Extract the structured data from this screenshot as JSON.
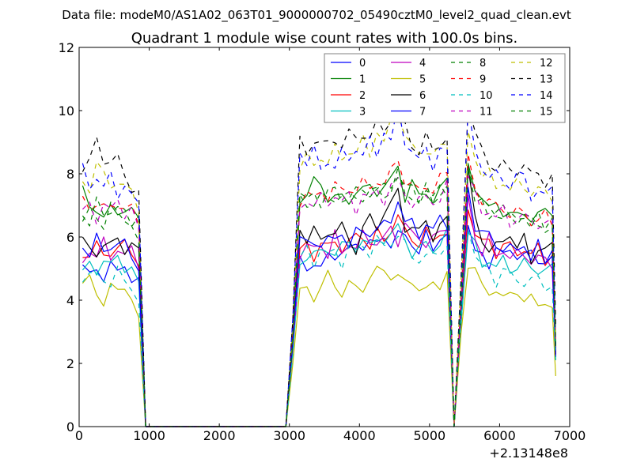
{
  "chart_data": {
    "type": "line",
    "suptitle": "Data file: modeM0/AS1A02_063T01_9000000702_05490cztM0_level2_quad_clean.evt",
    "title": "Quadrant 1 module wise count rates with 100.0s bins.",
    "xlabel": "",
    "ylabel": "",
    "x_offset_label": "+2.13148e8",
    "xlim": [
      0,
      7000
    ],
    "ylim": [
      0,
      12
    ],
    "xticks": [
      0,
      1000,
      2000,
      3000,
      4000,
      5000,
      6000,
      7000
    ],
    "yticks": [
      0,
      2,
      4,
      6,
      8,
      10,
      12
    ],
    "xtick_labels": [
      "0",
      "1000",
      "2000",
      "3000",
      "4000",
      "5000",
      "6000",
      "7000"
    ],
    "ytick_labels": [
      "0",
      "2",
      "4",
      "6",
      "8",
      "10",
      "12"
    ],
    "legend_position": "top-right",
    "legend_columns": 4,
    "gaps": [
      [
        950,
        3000
      ],
      [
        5300,
        5450
      ]
    ],
    "x": [
      50,
      150,
      250,
      350,
      450,
      550,
      650,
      750,
      850,
      950,
      1050,
      1500,
      2000,
      2500,
      2950,
      3050,
      3150,
      3250,
      3350,
      3450,
      3550,
      3650,
      3750,
      3850,
      3950,
      4050,
      4150,
      4250,
      4350,
      4450,
      4550,
      4650,
      4750,
      4850,
      4950,
      5050,
      5150,
      5250,
      5350,
      5450,
      5550,
      5650,
      5750,
      5850,
      5950,
      6050,
      6150,
      6250,
      6350,
      6450,
      6550,
      6650,
      6750,
      6800
    ],
    "series": [
      {
        "name": "0",
        "color": "#0000ff",
        "dash": "solid",
        "base": [
          5.0,
          4.8,
          4.9,
          4.9,
          5.0,
          4.9,
          5.1,
          4.8,
          4.4,
          0.0,
          0.0,
          0.0,
          0.0,
          0.0,
          0.0,
          2.5,
          5.1,
          5.2,
          5.1,
          5.0,
          5.3,
          5.6,
          5.4,
          5.6,
          5.7,
          5.9,
          5.7,
          5.8,
          6.0,
          5.9,
          5.9,
          6.1,
          5.8,
          5.6,
          5.9,
          5.7,
          6.0,
          6.1,
          0.0,
          3.5,
          6.4,
          5.5,
          5.3,
          5.3,
          5.6,
          5.4,
          5.5,
          5.6,
          5.3,
          5.5,
          5.2,
          5.4,
          5.3,
          2.2
        ]
      },
      {
        "name": "1",
        "color": "#008000",
        "dash": "solid",
        "base": [
          7.4,
          7.2,
          6.8,
          6.5,
          6.9,
          7.0,
          6.7,
          6.8,
          6.6,
          0.0,
          0.0,
          0.0,
          0.0,
          0.0,
          0.0,
          3.0,
          7.2,
          7.4,
          7.6,
          7.8,
          7.2,
          7.3,
          7.1,
          7.3,
          7.4,
          7.5,
          7.5,
          7.6,
          7.5,
          7.8,
          8.2,
          7.4,
          7.6,
          7.3,
          7.4,
          7.3,
          7.3,
          7.9,
          0.0,
          4.0,
          8.0,
          7.6,
          7.3,
          7.0,
          6.8,
          6.9,
          6.8,
          6.7,
          6.5,
          6.8,
          6.7,
          6.8,
          6.6,
          2.5
        ]
      },
      {
        "name": "2",
        "color": "#ff0000",
        "dash": "solid",
        "base": [
          5.6,
          5.3,
          5.7,
          5.5,
          5.6,
          5.5,
          5.8,
          5.6,
          5.2,
          0.0,
          0.0,
          0.0,
          0.0,
          0.0,
          0.0,
          2.6,
          5.5,
          5.7,
          5.4,
          5.9,
          5.6,
          5.8,
          5.7,
          5.9,
          5.9,
          6.0,
          5.8,
          6.2,
          5.7,
          6.3,
          6.8,
          6.1,
          5.8,
          5.9,
          6.3,
          5.7,
          6.1,
          6.3,
          0.0,
          3.5,
          7.0,
          6.2,
          5.7,
          5.9,
          5.5,
          5.8,
          5.6,
          5.5,
          5.7,
          5.4,
          5.6,
          5.3,
          5.5,
          2.3
        ]
      },
      {
        "name": "3",
        "color": "#00bfbf",
        "dash": "solid",
        "base": [
          4.9,
          5.0,
          5.1,
          5.2,
          5.1,
          5.3,
          5.2,
          4.9,
          4.5,
          0.0,
          0.0,
          0.0,
          0.0,
          0.0,
          0.0,
          2.4,
          5.2,
          5.4,
          5.6,
          5.3,
          5.7,
          5.5,
          5.8,
          5.6,
          5.8,
          5.9,
          5.7,
          5.8,
          6.1,
          6.0,
          6.3,
          5.9,
          5.6,
          5.5,
          5.8,
          5.6,
          5.9,
          6.0,
          0.0,
          3.4,
          6.2,
          5.6,
          5.2,
          5.3,
          5.0,
          5.2,
          5.1,
          5.0,
          5.2,
          4.9,
          5.1,
          4.9,
          5.0,
          2.1
        ]
      },
      {
        "name": "4",
        "color": "#bf00bf",
        "dash": "solid",
        "base": [
          5.3,
          5.6,
          5.4,
          5.7,
          5.5,
          5.6,
          5.4,
          5.5,
          5.3,
          0.0,
          0.0,
          0.0,
          0.0,
          0.0,
          0.0,
          2.5,
          5.6,
          5.5,
          5.7,
          5.8,
          5.5,
          5.9,
          5.6,
          5.8,
          5.7,
          5.9,
          6.0,
          5.8,
          6.0,
          6.1,
          6.0,
          6.4,
          6.1,
          5.8,
          6.0,
          5.9,
          6.1,
          6.2,
          0.0,
          3.6,
          7.3,
          6.0,
          5.6,
          5.8,
          5.5,
          5.6,
          5.4,
          5.3,
          5.6,
          5.2,
          5.4,
          5.1,
          5.3,
          2.2
        ]
      },
      {
        "name": "5",
        "color": "#bfbf00",
        "dash": "solid",
        "base": [
          4.7,
          4.6,
          4.1,
          4.0,
          4.6,
          4.1,
          4.4,
          4.2,
          3.4,
          0.0,
          0.0,
          0.0,
          0.0,
          0.0,
          0.0,
          2.0,
          4.2,
          4.4,
          4.2,
          4.3,
          4.8,
          4.5,
          4.3,
          4.4,
          4.4,
          4.4,
          4.8,
          4.8,
          5.0,
          4.8,
          4.8,
          4.4,
          4.7,
          4.4,
          4.3,
          4.4,
          4.6,
          4.9,
          0.0,
          2.9,
          5.3,
          4.9,
          4.4,
          4.2,
          4.5,
          3.9,
          4.2,
          4.3,
          4.1,
          3.9,
          3.9,
          4.0,
          3.8,
          1.6
        ]
      },
      {
        "name": "6",
        "color": "#000000",
        "dash": "solid",
        "base": [
          5.7,
          5.8,
          5.5,
          5.7,
          5.6,
          6.2,
          5.5,
          5.7,
          5.5,
          0.0,
          0.0,
          0.0,
          0.0,
          0.0,
          0.0,
          2.7,
          6.3,
          6.0,
          6.1,
          5.9,
          6.2,
          6.2,
          6.2,
          6.0,
          5.6,
          6.3,
          6.5,
          6.4,
          6.8,
          7.0,
          7.4,
          6.4,
          6.3,
          6.1,
          6.5,
          6.1,
          6.3,
          6.5,
          0.0,
          3.8,
          8.0,
          6.6,
          6.0,
          5.6,
          5.6,
          5.9,
          6.2,
          5.6,
          5.9,
          5.3,
          5.7,
          5.5,
          5.7,
          2.3
        ]
      },
      {
        "name": "7",
        "color": "#0000ff",
        "dash": "solid",
        "base": [
          5.7,
          5.6,
          5.8,
          5.6,
          5.7,
          5.9,
          5.6,
          5.5,
          5.0,
          0.0,
          0.0,
          0.0,
          0.0,
          0.0,
          0.0,
          2.6,
          5.9,
          5.8,
          5.7,
          6.0,
          5.8,
          5.9,
          6.1,
          5.9,
          6.0,
          6.2,
          6.1,
          6.4,
          6.2,
          6.6,
          7.2,
          6.5,
          6.3,
          6.2,
          6.4,
          6.2,
          6.5,
          6.6,
          0.0,
          3.7,
          7.5,
          6.5,
          6.0,
          6.1,
          5.7,
          5.8,
          5.5,
          5.6,
          5.8,
          5.4,
          5.6,
          5.3,
          5.5,
          2.2
        ]
      },
      {
        "name": "8",
        "color": "#008000",
        "dash": "dashed",
        "base": [
          6.4,
          6.8,
          6.6,
          6.5,
          6.9,
          6.7,
          6.6,
          6.5,
          6.4,
          0.0,
          0.0,
          0.0,
          0.0,
          0.0,
          0.0,
          3.0,
          7.1,
          7.2,
          7.0,
          7.3,
          7.1,
          7.4,
          7.2,
          7.3,
          7.2,
          7.4,
          7.3,
          7.5,
          7.3,
          7.6,
          7.9,
          7.4,
          7.3,
          7.2,
          7.4,
          7.2,
          7.4,
          7.6,
          0.0,
          4.0,
          8.1,
          7.4,
          7.0,
          6.9,
          6.7,
          6.9,
          6.6,
          6.7,
          6.5,
          6.6,
          6.4,
          6.5,
          6.3,
          2.5
        ]
      },
      {
        "name": "9",
        "color": "#ff0000",
        "dash": "dashed",
        "base": [
          7.2,
          7.0,
          7.1,
          6.8,
          7.0,
          7.1,
          6.9,
          6.8,
          6.5,
          0.0,
          0.0,
          0.0,
          0.0,
          0.0,
          0.0,
          3.1,
          7.2,
          7.4,
          7.1,
          7.5,
          7.3,
          7.6,
          7.4,
          7.6,
          7.5,
          7.7,
          7.5,
          7.9,
          7.6,
          8.0,
          8.5,
          7.8,
          7.6,
          7.4,
          7.7,
          7.5,
          7.8,
          8.0,
          0.0,
          4.1,
          8.4,
          7.6,
          7.2,
          7.1,
          6.9,
          7.0,
          6.7,
          6.8,
          6.7,
          6.6,
          6.5,
          6.7,
          6.4,
          2.6
        ]
      },
      {
        "name": "10",
        "color": "#00bfbf",
        "dash": "dashed",
        "base": [
          4.9,
          4.7,
          4.8,
          4.6,
          4.7,
          4.8,
          4.6,
          4.4,
          4.1,
          0.0,
          0.0,
          0.0,
          0.0,
          0.0,
          0.0,
          2.3,
          5.3,
          5.5,
          5.3,
          5.6,
          5.4,
          5.5,
          5.3,
          5.6,
          5.5,
          5.7,
          5.6,
          5.8,
          5.7,
          5.8,
          6.2,
          5.6,
          5.4,
          5.3,
          5.5,
          5.2,
          5.6,
          5.8,
          0.0,
          3.2,
          6.5,
          5.4,
          5.0,
          4.9,
          4.7,
          4.9,
          4.8,
          4.6,
          4.7,
          4.5,
          4.7,
          4.4,
          4.6,
          2.0
        ]
      },
      {
        "name": "11",
        "color": "#bf00bf",
        "dash": "dashed",
        "base": [
          6.8,
          6.9,
          6.7,
          7.0,
          6.8,
          7.1,
          6.9,
          6.8,
          6.2,
          0.0,
          0.0,
          0.0,
          0.0,
          0.0,
          0.0,
          3.0,
          7.0,
          7.2,
          7.0,
          7.1,
          7.2,
          7.3,
          7.1,
          7.2,
          7.0,
          7.3,
          7.2,
          7.4,
          7.3,
          7.5,
          7.8,
          7.3,
          7.2,
          7.0,
          7.3,
          7.1,
          7.3,
          7.5,
          0.0,
          3.9,
          8.0,
          7.2,
          6.9,
          6.8,
          6.6,
          6.8,
          6.6,
          6.5,
          6.7,
          6.4,
          6.6,
          6.3,
          6.5,
          2.4
        ]
      },
      {
        "name": "12",
        "color": "#bfbf00",
        "dash": "dashed",
        "base": [
          7.8,
          7.6,
          8.3,
          7.9,
          7.7,
          7.8,
          7.5,
          7.4,
          7.0,
          0.0,
          0.0,
          0.0,
          0.0,
          0.0,
          0.0,
          3.3,
          8.3,
          8.5,
          8.2,
          8.6,
          8.4,
          8.7,
          8.5,
          8.8,
          8.6,
          9.0,
          8.7,
          9.4,
          8.9,
          9.6,
          10.1,
          9.2,
          8.8,
          8.6,
          8.9,
          8.5,
          8.8,
          9.0,
          0.0,
          4.5,
          9.3,
          8.6,
          8.0,
          7.9,
          7.6,
          7.8,
          7.5,
          7.6,
          7.7,
          7.4,
          7.5,
          7.3,
          7.4,
          2.8
        ]
      },
      {
        "name": "13",
        "color": "#000000",
        "dash": "dashed",
        "base": [
          8.1,
          8.4,
          9.0,
          8.6,
          8.3,
          8.5,
          7.9,
          7.7,
          7.3,
          0.0,
          0.0,
          0.0,
          0.0,
          0.0,
          0.0,
          3.5,
          8.9,
          8.7,
          9.1,
          9.0,
          8.8,
          9.2,
          8.9,
          9.3,
          9.0,
          9.4,
          9.1,
          9.6,
          9.3,
          9.9,
          10.4,
          9.5,
          8.9,
          8.8,
          9.1,
          8.7,
          9.0,
          9.2,
          0.0,
          4.8,
          10.3,
          9.3,
          8.6,
          8.4,
          8.2,
          8.3,
          8.0,
          8.2,
          8.3,
          7.9,
          8.0,
          7.8,
          7.9,
          3.0
        ]
      },
      {
        "name": "14",
        "color": "#0000ff",
        "dash": "dashed",
        "base": [
          8.0,
          7.7,
          7.9,
          7.6,
          7.8,
          7.5,
          7.6,
          7.3,
          6.9,
          0.0,
          0.0,
          0.0,
          0.0,
          0.0,
          0.0,
          3.4,
          8.7,
          8.5,
          8.6,
          8.2,
          8.4,
          8.3,
          8.5,
          8.6,
          8.8,
          8.6,
          8.9,
          8.8,
          9.3,
          9.0,
          10.0,
          9.2,
          8.6,
          8.4,
          8.8,
          8.4,
          8.6,
          8.7,
          0.0,
          4.6,
          9.8,
          8.8,
          8.2,
          8.0,
          7.8,
          7.9,
          7.6,
          8.1,
          7.7,
          7.4,
          7.5,
          7.3,
          7.4,
          2.9
        ]
      },
      {
        "name": "15",
        "color": "#008000",
        "dash": "dashed",
        "base": [
          6.8,
          6.5,
          7.0,
          6.7,
          6.9,
          7.0,
          6.6,
          6.5,
          6.0,
          0.0,
          0.0,
          0.0,
          0.0,
          0.0,
          0.0,
          3.0,
          7.3,
          7.1,
          7.4,
          7.2,
          7.3,
          7.5,
          7.2,
          7.4,
          7.3,
          7.5,
          7.4,
          7.6,
          7.4,
          7.7,
          8.0,
          7.6,
          7.4,
          7.3,
          7.5,
          7.2,
          7.5,
          7.6,
          0.0,
          4.0,
          8.2,
          7.4,
          7.0,
          6.9,
          6.7,
          6.8,
          6.5,
          6.6,
          6.7,
          6.4,
          6.5,
          6.3,
          6.4,
          2.5
        ]
      }
    ]
  }
}
